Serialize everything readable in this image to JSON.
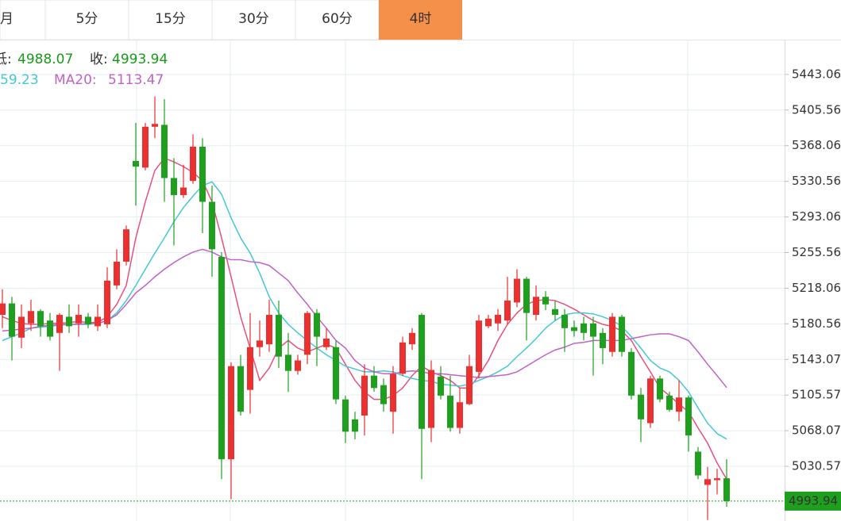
{
  "tabs": [
    "月",
    "5分",
    "15分",
    "30分",
    "60分",
    "4时"
  ],
  "active_tab": 5,
  "chart_data": {
    "type": "candlestick",
    "info": {
      "low_label": "低:",
      "low": 4988.07,
      "close_label": "收:",
      "close": 4993.94,
      "ma10_value": "59.23",
      "ma20_label": "MA20:",
      "ma20_value": 5113.47
    },
    "open": [
      5190,
      5202,
      5166,
      5181,
      5194,
      5184,
      5171,
      5188,
      5181,
      5188,
      5178,
      5180,
      5221,
      5246,
      5352,
      5345,
      5388,
      5390,
      5334,
      5316,
      5331,
      5367,
      5309,
      5251,
      5038,
      5136,
      5111,
      5156,
      5159,
      5190,
      5148,
      5131,
      5148,
      5192,
      5156,
      5156,
      5101,
      5080,
      5084,
      5126,
      5116,
      5088,
      5128,
      5159,
      5190,
      5071,
      5125,
      5105,
      5071,
      5096,
      5130,
      5178,
      5181,
      5184,
      5203,
      5228,
      5190,
      5209,
      5196,
      5190,
      5177,
      5181,
      5181,
      5171,
      5151,
      5188,
      5151,
      5106,
      5076,
      5123,
      5105,
      5088,
      5103,
      5046,
      5011,
      5016,
      5018
    ],
    "high": [
      5217,
      5209,
      5201,
      5206,
      5196,
      5192,
      5192,
      5201,
      5201,
      5192,
      5201,
      5240,
      5259,
      5284,
      5392,
      5392,
      5420,
      5417,
      5355,
      5348,
      5380,
      5376,
      5326,
      5256,
      5140,
      5148,
      5192,
      5184,
      5206,
      5205,
      5171,
      5148,
      5194,
      5196,
      5176,
      5163,
      5105,
      5088,
      5138,
      5136,
      5123,
      5136,
      5167,
      5176,
      5192,
      5142,
      5136,
      5126,
      5113,
      5148,
      5190,
      5190,
      5196,
      5230,
      5238,
      5230,
      5221,
      5215,
      5205,
      5196,
      5184,
      5188,
      5188,
      5176,
      5192,
      5190,
      5155,
      5113,
      5126,
      5126,
      5109,
      5121,
      5105,
      5051,
      5030,
      5028,
      5038
    ],
    "low": [
      5176,
      5142,
      5155,
      5173,
      5167,
      5163,
      5131,
      5171,
      5167,
      5176,
      5173,
      5176,
      5217,
      5242,
      5305,
      5342,
      5376,
      5309,
      5263,
      5313,
      5328,
      5276,
      5230,
      5017,
      4996,
      5084,
      5086,
      5146,
      5151,
      5134,
      5109,
      5127,
      5138,
      5136,
      5153,
      5096,
      5055,
      5059,
      5063,
      5109,
      5088,
      5065,
      5126,
      5153,
      5017,
      5056,
      5101,
      5067,
      5065,
      5095,
      5123,
      5176,
      5173,
      5180,
      5198,
      5163,
      5184,
      5195,
      5184,
      5151,
      5167,
      5163,
      5126,
      5138,
      5146,
      5146,
      5101,
      5056,
      5071,
      5098,
      5088,
      5078,
      5046,
      5017,
      4974,
      5001,
      4988.07
    ],
    "close": [
      5202,
      5167,
      5188,
      5194,
      5178,
      5167,
      5190,
      5178,
      5190,
      5180,
      5188,
      5226,
      5246,
      5280,
      5346,
      5388,
      5391,
      5334,
      5316,
      5324,
      5367,
      5309,
      5259,
      5038,
      5136,
      5088,
      5156,
      5163,
      5190,
      5146,
      5131,
      5142,
      5192,
      5167,
      5165,
      5101,
      5067,
      5067,
      5126,
      5113,
      5096,
      5128,
      5161,
      5171,
      5070,
      5132,
      5105,
      5071,
      5098,
      5136,
      5184,
      5186,
      5190,
      5205,
      5228,
      5192,
      5209,
      5201,
      5190,
      5176,
      5173,
      5171,
      5167,
      5155,
      5188,
      5151,
      5105,
      5080,
      5123,
      5101,
      5090,
      5103,
      5063,
      5021,
      5017,
      5018,
      4993.94
    ],
    "up_color": "#eb3030",
    "down_color": "#1ea01e",
    "ma_lines": [
      {
        "color": "#e8507c",
        "values": [
          5188,
          5184,
          5181,
          5180,
          5180,
          5181,
          5181,
          5182,
          5183,
          5182,
          5182,
          5188,
          5201,
          5221,
          5271,
          5309,
          5342,
          5355,
          5351,
          5346,
          5340,
          5331,
          5309,
          5271,
          5230,
          5188,
          5155,
          5121,
          5134,
          5155,
          5163,
          5155,
          5151,
          5155,
          5159,
          5155,
          5138,
          5121,
          5109,
          5101,
          5101,
          5105,
          5113,
          5126,
          5136,
          5130,
          5126,
          5121,
          5113,
          5113,
          5126,
          5142,
          5163,
          5180,
          5192,
          5201,
          5205,
          5206,
          5205,
          5201,
          5196,
          5190,
          5184,
          5180,
          5178,
          5173,
          5163,
          5146,
          5130,
          5113,
          5105,
          5096,
          5088,
          5071,
          5055,
          5034,
          5017
        ]
      },
      {
        "color": "#44c8d6",
        "values": [
          5163,
          5167,
          5171,
          5176,
          5177,
          5178,
          5179,
          5180,
          5180,
          5180,
          5181,
          5184,
          5192,
          5205,
          5221,
          5238,
          5255,
          5271,
          5288,
          5303,
          5315,
          5326,
          5330,
          5317,
          5292,
          5271,
          5255,
          5234,
          5209,
          5192,
          5180,
          5171,
          5163,
          5155,
          5148,
          5142,
          5136,
          5133,
          5130,
          5130,
          5131,
          5130,
          5126,
          5123,
          5121,
          5120,
          5117,
          5116,
          5115,
          5117,
          5121,
          5125,
          5130,
          5136,
          5146,
          5155,
          5165,
          5176,
          5184,
          5190,
          5192,
          5192,
          5191,
          5188,
          5184,
          5178,
          5167,
          5155,
          5142,
          5134,
          5130,
          5121,
          5109,
          5092,
          5076,
          5065,
          5059.23
        ]
      },
      {
        "color": "#c062c8",
        "values": [
          5173,
          5174,
          5175,
          5176,
          5178,
          5179,
          5180,
          5180,
          5180,
          5181,
          5181,
          5184,
          5190,
          5201,
          5213,
          5221,
          5230,
          5238,
          5245,
          5251,
          5256,
          5259,
          5256,
          5251,
          5248,
          5248,
          5246,
          5245,
          5242,
          5234,
          5226,
          5213,
          5201,
          5188,
          5176,
          5163,
          5155,
          5142,
          5134,
          5130,
          5128,
          5128,
          5130,
          5131,
          5130,
          5128,
          5128,
          5127,
          5126,
          5125,
          5124,
          5125,
          5126,
          5127,
          5130,
          5136,
          5142,
          5148,
          5153,
          5156,
          5160,
          5161,
          5163,
          5163,
          5163,
          5163,
          5165,
          5167,
          5169,
          5170,
          5170,
          5167,
          5163,
          5151,
          5138,
          5126,
          5113.47
        ]
      }
    ],
    "last_price": 4993.94,
    "ylim": [
      4973,
      5478
    ],
    "yticks": [
      5443.06,
      5405.56,
      5368.06,
      5330.56,
      5293.06,
      5255.56,
      5218.06,
      5180.56,
      5143.07,
      5105.57,
      5068.07,
      5030.57
    ],
    "grid": true
  }
}
